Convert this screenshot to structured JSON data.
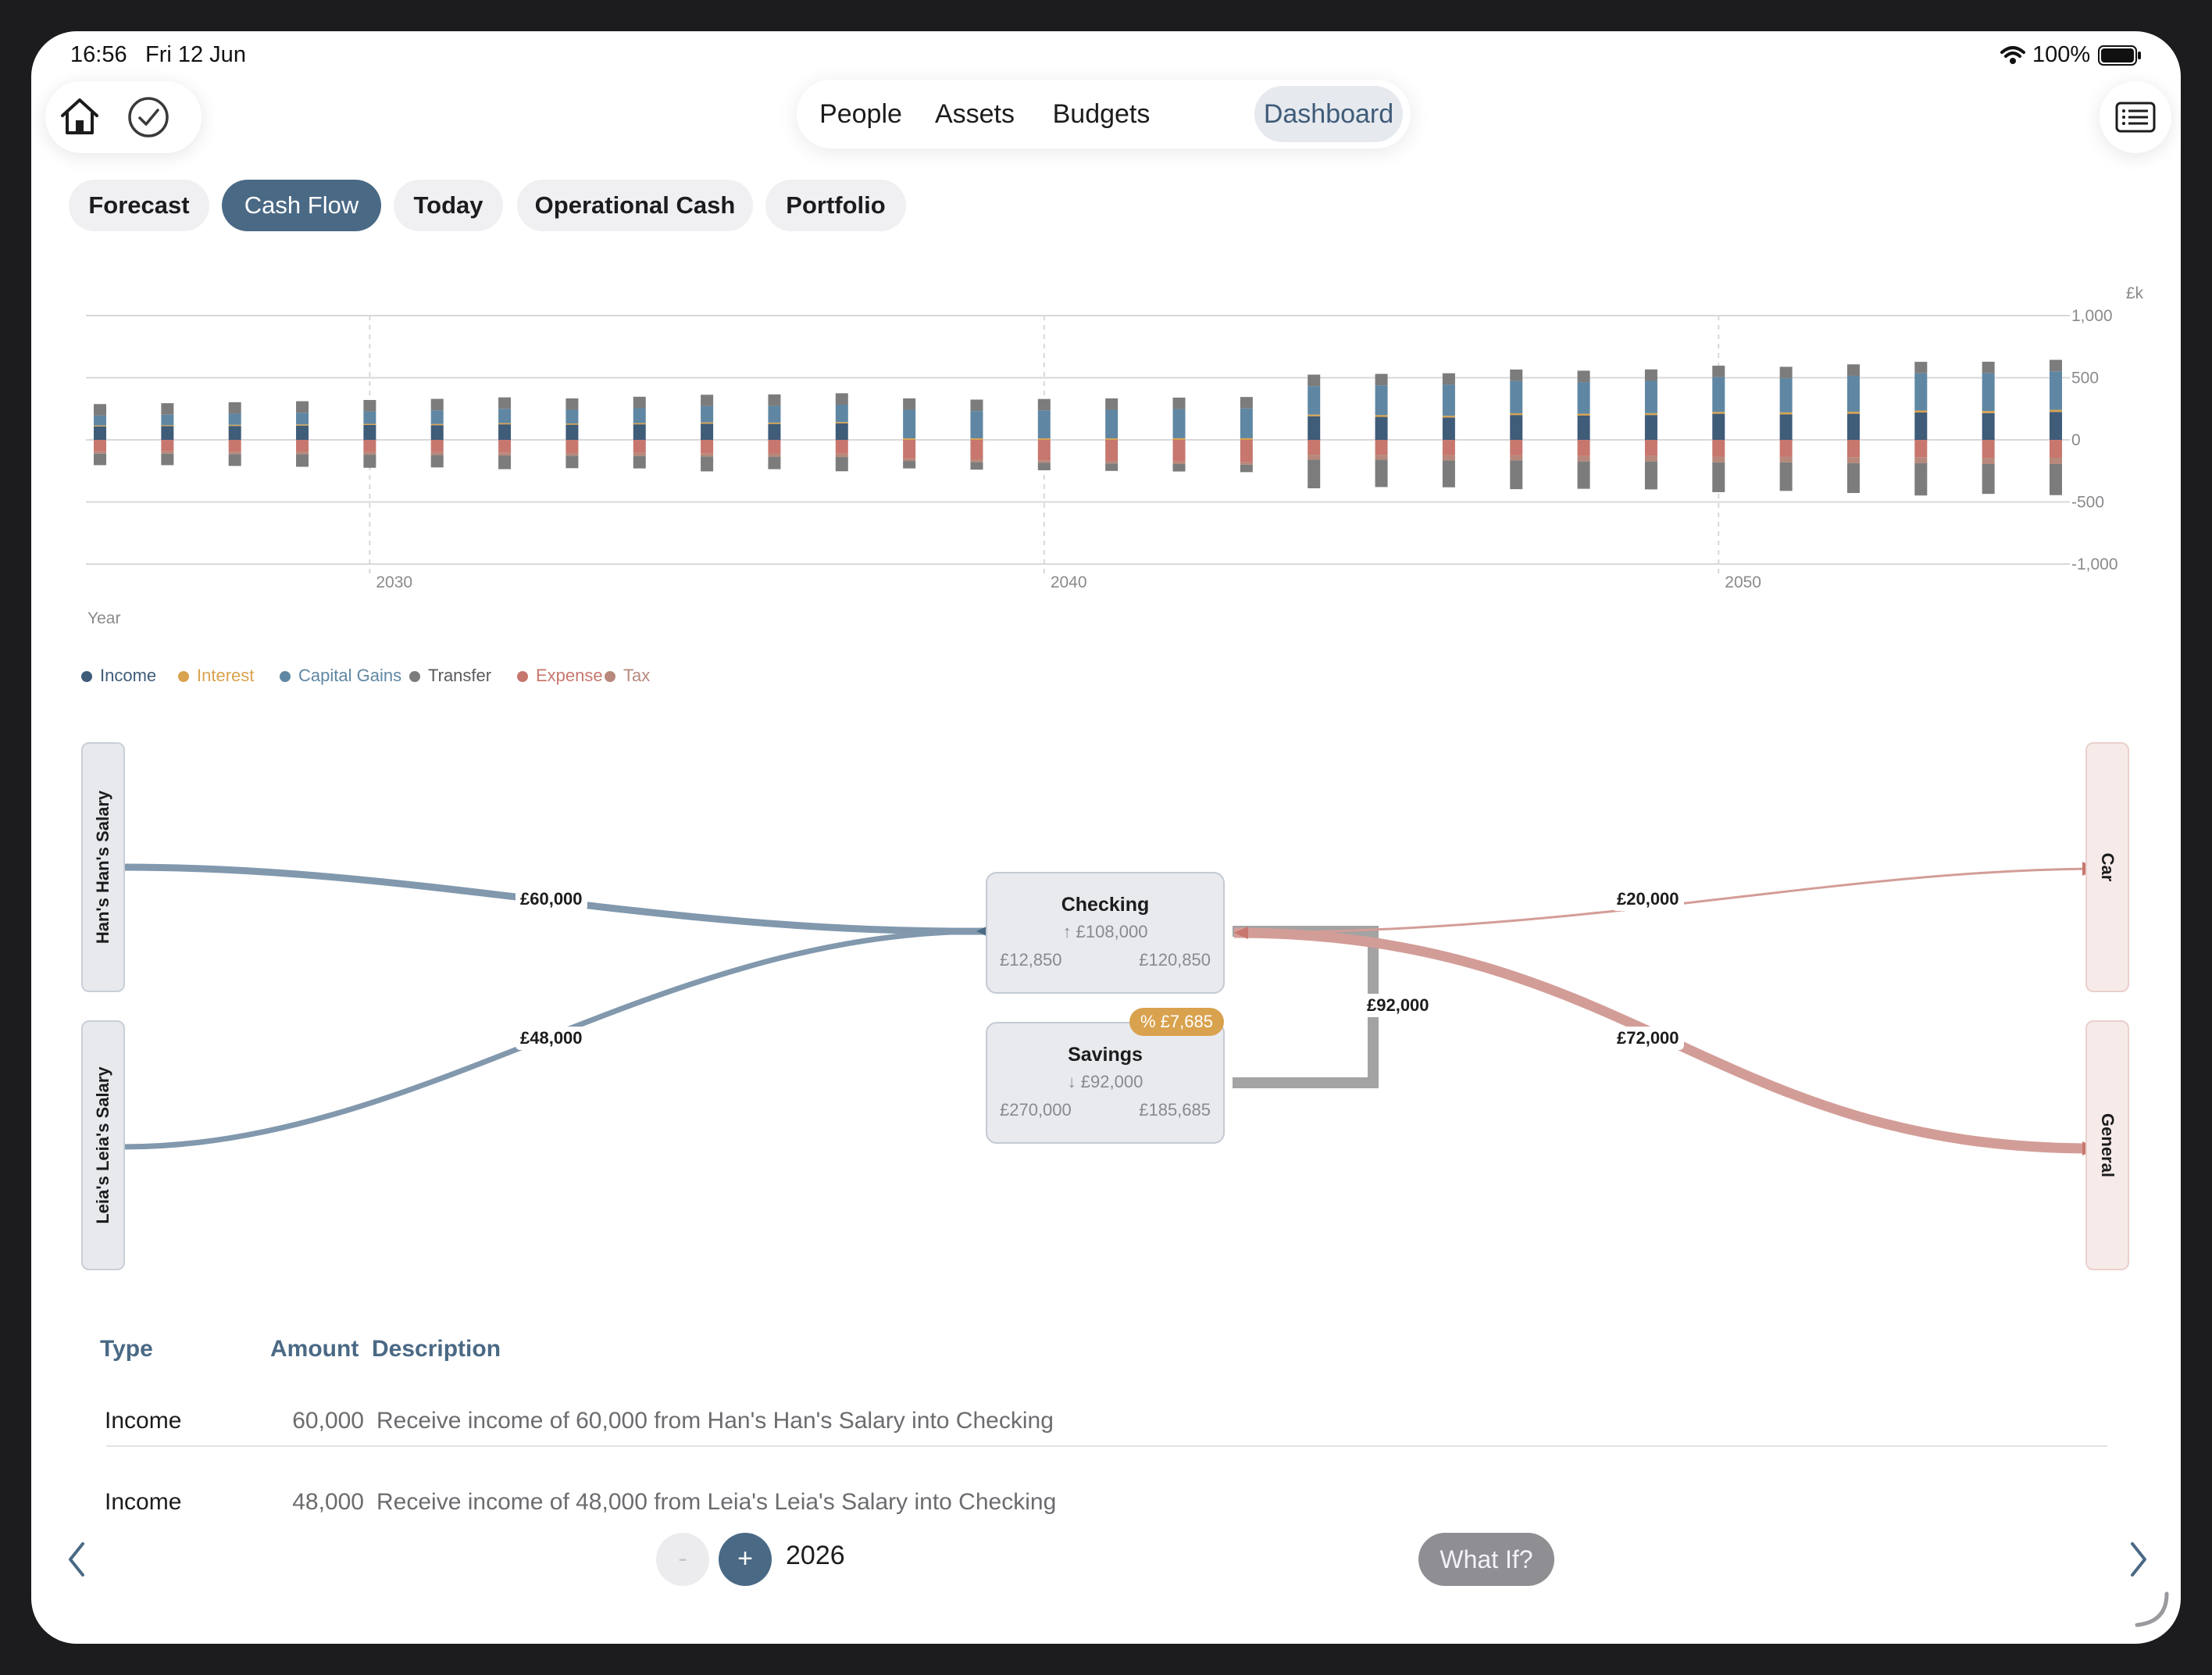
{
  "status_bar": {
    "time": "16:56",
    "date": "Fri 12 Jun",
    "battery": "100%"
  },
  "top_tabs": [
    {
      "label": "People",
      "active": false
    },
    {
      "label": "Assets",
      "active": false
    },
    {
      "label": "Budgets",
      "active": false
    },
    {
      "label": "Dashboard",
      "active": true
    }
  ],
  "sub_tabs": [
    {
      "label": "Forecast",
      "active": false
    },
    {
      "label": "Cash Flow",
      "active": true
    },
    {
      "label": "Today",
      "active": false
    },
    {
      "label": "Operational Cash",
      "active": false
    },
    {
      "label": "Portfolio",
      "active": false
    }
  ],
  "colors": {
    "income": "#3f5c79",
    "interest": "#d9a24e",
    "capital_gains": "#5f87a3",
    "transfer": "#7c7c7c",
    "expense": "#c7776e",
    "tax": "#b7887b",
    "accent": "#4a6985"
  },
  "chart_data": {
    "type": "bar",
    "stacked": true,
    "unit": "£k",
    "xlabel": "Year",
    "ylim": [
      -1000,
      1000
    ],
    "yticks": [
      1000,
      500,
      0,
      -500,
      -1000
    ],
    "ytick_labels": [
      "1,000",
      "500",
      "0",
      "-500",
      "-1,000"
    ],
    "xticks": [
      2030,
      2040,
      2050
    ],
    "x_start": 2026,
    "x": [
      2026,
      2027,
      2028,
      2029,
      2030,
      2031,
      2032,
      2033,
      2034,
      2035,
      2036,
      2037,
      2038,
      2039,
      2040,
      2041,
      2042,
      2043,
      2044,
      2045,
      2046,
      2047,
      2048,
      2049,
      2050,
      2051,
      2052,
      2053,
      2054,
      2055
    ],
    "grid": true,
    "legend_position": "bottom-left",
    "series": [
      {
        "name": "Income",
        "color_key": "income",
        "values": [
          108,
          110,
          112,
          115,
          120,
          118,
          125,
          122,
          125,
          130,
          128,
          132,
          0,
          0,
          0,
          0,
          0,
          0,
          190,
          185,
          180,
          200,
          195,
          200,
          210,
          205,
          210,
          220,
          215,
          225
        ]
      },
      {
        "name": "Interest",
        "color_key": "interest",
        "values": [
          8,
          8,
          9,
          9,
          9,
          10,
          10,
          10,
          10,
          11,
          11,
          11,
          12,
          12,
          12,
          12,
          13,
          13,
          13,
          14,
          14,
          14,
          15,
          15,
          15,
          16,
          16,
          16,
          17,
          17
        ]
      },
      {
        "name": "Capital Gains",
        "color_key": "capital_gains",
        "values": [
          80,
          85,
          90,
          95,
          100,
          110,
          115,
          110,
          120,
          130,
          135,
          140,
          230,
          220,
          225,
          230,
          235,
          240,
          230,
          240,
          250,
          260,
          255,
          260,
          280,
          275,
          290,
          300,
          305,
          310
        ]
      },
      {
        "name": "Transfer",
        "color_key": "transfer",
        "values": [
          92,
          92,
          92,
          92,
          92,
          92,
          92,
          92,
          92,
          92,
          92,
          92,
          92,
          92,
          92,
          92,
          92,
          92,
          92,
          92,
          92,
          92,
          92,
          92,
          92,
          92,
          92,
          92,
          92,
          92
        ]
      },
      {
        "name": "Expense",
        "color_key": "expense",
        "values": [
          -92,
          -92,
          -95,
          -95,
          -98,
          -100,
          -102,
          -104,
          -106,
          -108,
          -110,
          -112,
          -150,
          -160,
          -165,
          -170,
          -175,
          -180,
          -120,
          -120,
          -125,
          -125,
          -130,
          -130,
          -135,
          -135,
          -140,
          -140,
          -145,
          -145
        ]
      },
      {
        "name": "Tax",
        "color_key": "tax",
        "values": [
          -20,
          -20,
          -20,
          -22,
          -22,
          -22,
          -24,
          -24,
          -24,
          -26,
          -26,
          -26,
          -20,
          -20,
          -20,
          -20,
          -20,
          -20,
          -40,
          -40,
          -42,
          -42,
          -44,
          -44,
          -46,
          -46,
          -48,
          -48,
          -50,
          -50
        ]
      },
      {
        "name": "Transfer",
        "color_key": "transfer",
        "values": [
          -92,
          -92,
          -95,
          -100,
          -105,
          -100,
          -110,
          -100,
          -100,
          -120,
          -100,
          -115,
          -60,
          -60,
          -60,
          -60,
          -60,
          -60,
          -230,
          -220,
          -215,
          -230,
          -220,
          -225,
          -240,
          -230,
          -240,
          -260,
          -240,
          -250
        ]
      }
    ],
    "legend": [
      {
        "label": "Income",
        "color_key": "income"
      },
      {
        "label": "Interest",
        "color_key": "interest"
      },
      {
        "label": "Capital Gains",
        "color_key": "capital_gains"
      },
      {
        "label": "Transfer",
        "color_key": "transfer"
      },
      {
        "label": "Expense",
        "color_key": "expense"
      },
      {
        "label": "Tax",
        "color_key": "tax"
      }
    ]
  },
  "sankey": {
    "sources": [
      {
        "label": "Han's Han's Salary"
      },
      {
        "label": "Leia's Leia's Salary"
      }
    ],
    "destinations": [
      {
        "label": "Car"
      },
      {
        "label": "General"
      }
    ],
    "accounts": [
      {
        "name": "Checking",
        "change": "↑ £108,000",
        "start": "£12,850",
        "end": "£120,850"
      },
      {
        "name": "Savings",
        "change": "↓ £92,000",
        "start": "£270,000",
        "end": "£185,685"
      }
    ],
    "interest_badge": "% £7,685",
    "flows": {
      "han_to_checking": "£60,000",
      "leia_to_checking": "£48,000",
      "savings_to_checking": "£92,000",
      "checking_to_car": "£20,000",
      "checking_to_general": "£72,000"
    }
  },
  "table": {
    "headers": {
      "type": "Type",
      "amount": "Amount",
      "description": "Description"
    },
    "rows": [
      {
        "type": "Income",
        "amount": "60,000",
        "description": "Receive income of 60,000 from Han's Han's Salary into Checking"
      },
      {
        "type": "Income",
        "amount": "48,000",
        "description": "Receive income of 48,000 from Leia's Leia's Salary into Checking"
      }
    ]
  },
  "bottom_bar": {
    "minus": "-",
    "plus": "+",
    "year": "2026",
    "what_if": "What If?"
  }
}
